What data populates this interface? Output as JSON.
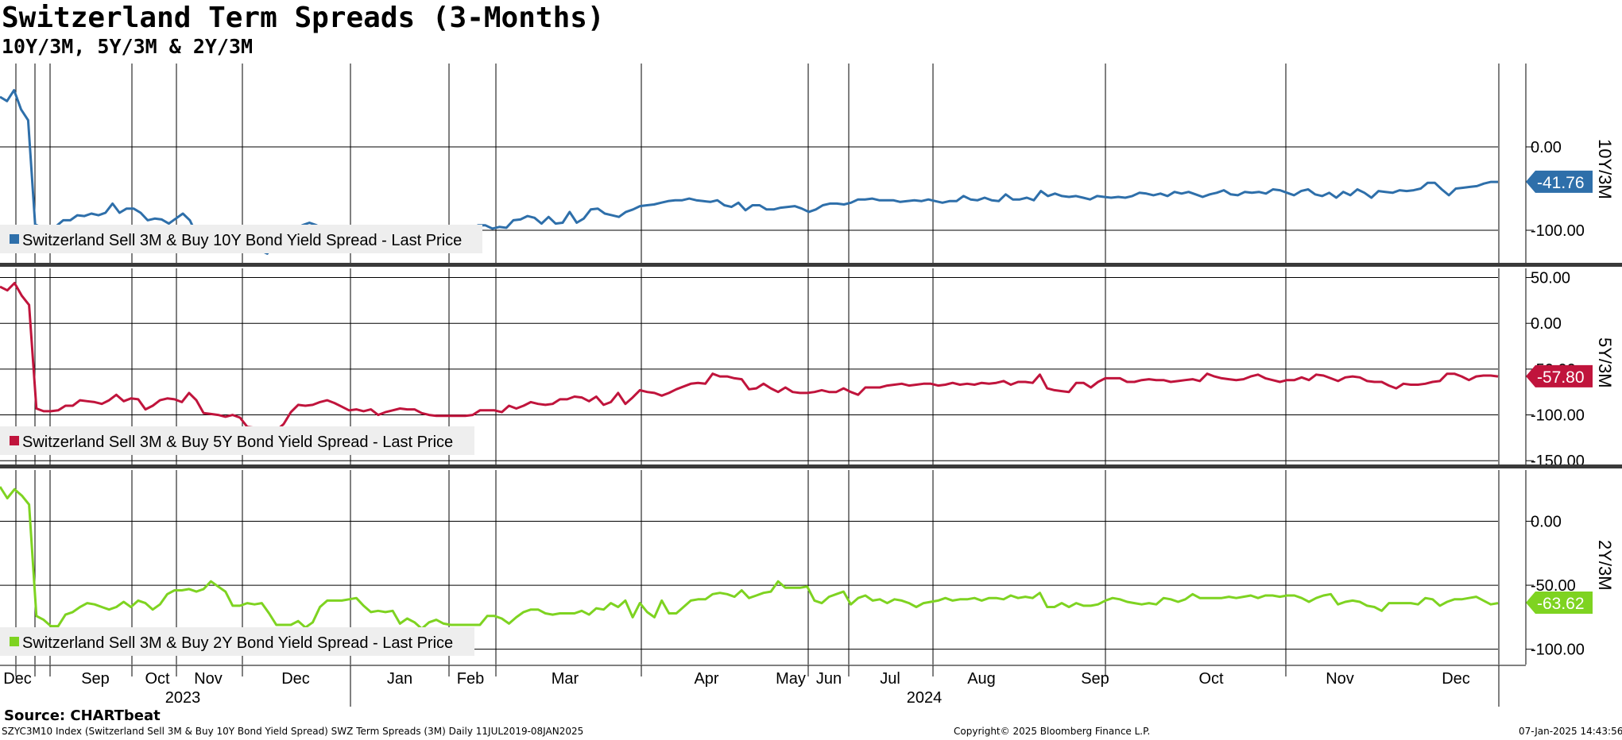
{
  "title": "Switzerland Term Spreads (3-Months)",
  "subtitle": "10Y/3M, 5Y/3M & 2Y/3M",
  "source": "Source: CHARTbeat",
  "footer": {
    "left": "SZYC3M10 Index (Switzerland Sell 3M & Buy 10Y Bond Yield Spread) SWZ Term Spreads (3M)  Daily 11JUL2019-08JAN2025",
    "center": "Copyright© 2025 Bloomberg Finance L.P.",
    "right": "07-Jan-2025 14:43:56"
  },
  "colors": {
    "series_10y": "#2e6faa",
    "series_5y": "#c0143c",
    "series_2y": "#7ed321",
    "grid": "#000000",
    "legend_bg": "#eeeeee"
  },
  "chart_data": {
    "type": "line",
    "x_range": [
      "2023-12-01",
      "2025-01-08"
    ],
    "grid": true,
    "month_labels": [
      "Dec",
      "Sep",
      "Oct",
      "Nov",
      "Dec",
      "Jan",
      "Feb",
      "Mar",
      "Apr",
      "May",
      "Jun",
      "Jul",
      "Aug",
      "Sep",
      "Oct",
      "Nov",
      "Dec"
    ],
    "year_labels": [
      "2023",
      "2024"
    ],
    "panels": [
      {
        "name": "10Y/3M",
        "legend": "Switzerland Sell 3M & Buy 10Y Bond Yield Spread - Last Price",
        "last_value": "-41.76",
        "y_ticks": [
          "0.00",
          "-100.00"
        ],
        "values": [
          60,
          55,
          68,
          45,
          32,
          -93,
          -97,
          -96,
          -95,
          -88,
          -88,
          -82,
          -83,
          -80,
          -82,
          -79,
          -68,
          -79,
          -74,
          -74,
          -79,
          -88,
          -86,
          -87,
          -92,
          -86,
          -80,
          -88,
          -106,
          -103,
          -106,
          -108,
          -107,
          -104,
          -123,
          -123,
          -123,
          -124,
          -128,
          -116,
          -100,
          -98,
          -98,
          -94,
          -91,
          -94,
          -98,
          -96,
          -99,
          -95,
          -101,
          -97,
          -96,
          -95,
          -96,
          -97,
          -106,
          -107,
          -107,
          -108,
          -107,
          -106,
          -102,
          -104,
          -101,
          -106,
          -97,
          -99,
          -94,
          -94,
          -98,
          -96,
          -97,
          -88,
          -87,
          -83,
          -85,
          -92,
          -84,
          -92,
          -91,
          -78,
          -91,
          -86,
          -75,
          -74,
          -80,
          -82,
          -84,
          -78,
          -75,
          -71,
          -70,
          -69,
          -67,
          -65,
          -64,
          -64,
          -62,
          -64,
          -65,
          -66,
          -64,
          -70,
          -72,
          -67,
          -76,
          -70,
          -70,
          -75,
          -75,
          -73,
          -72,
          -71,
          -74,
          -78,
          -75,
          -70,
          -68,
          -68,
          -69,
          -67,
          -63,
          -63,
          -62,
          -64,
          -64,
          -64,
          -66,
          -65,
          -64,
          -65,
          -63,
          -65,
          -67,
          -65,
          -65,
          -59,
          -63,
          -64,
          -61,
          -64,
          -65,
          -57,
          -63,
          -63,
          -61,
          -64,
          -53,
          -59,
          -56,
          -59,
          -60,
          -59,
          -61,
          -63,
          -59,
          -60,
          -61,
          -60,
          -61,
          -59,
          -55,
          -56,
          -58,
          -56,
          -59,
          -54,
          -56,
          -54,
          -57,
          -60,
          -57,
          -55,
          -52,
          -57,
          -58,
          -54,
          -55,
          -54,
          -56,
          -51,
          -52,
          -55,
          -58,
          -53,
          -51,
          -57,
          -59,
          -55,
          -61,
          -54,
          -58,
          -51,
          -55,
          -61,
          -53,
          -54,
          -55,
          -52,
          -53,
          -52,
          -50,
          -43,
          -43,
          -51,
          -58,
          -50,
          -49,
          -48,
          -47,
          -44,
          -42,
          -42
        ]
      },
      {
        "name": "5Y/3M",
        "legend": "Switzerland Sell 3M & Buy 5Y Bond Yield Spread - Last Price",
        "last_value": "-57.80",
        "y_ticks": [
          "50.00",
          "0.00",
          "-50.00",
          "-100.00",
          "-150.00"
        ],
        "values": [
          40,
          36,
          44,
          30,
          20,
          -93,
          -96,
          -96,
          -95,
          -90,
          -90,
          -84,
          -85,
          -86,
          -88,
          -84,
          -78,
          -85,
          -82,
          -83,
          -94,
          -90,
          -84,
          -82,
          -83,
          -86,
          -76,
          -84,
          -98,
          -99,
          -100,
          -102,
          -100,
          -103,
          -113,
          -114,
          -115,
          -115,
          -117,
          -110,
          -97,
          -89,
          -90,
          -89,
          -86,
          -84,
          -87,
          -91,
          -95,
          -94,
          -96,
          -94,
          -100,
          -97,
          -95,
          -93,
          -94,
          -94,
          -98,
          -100,
          -101,
          -101,
          -101,
          -101,
          -101,
          -100,
          -95,
          -95,
          -95,
          -97,
          -90,
          -93,
          -90,
          -86,
          -88,
          -89,
          -88,
          -83,
          -83,
          -80,
          -81,
          -85,
          -80,
          -89,
          -86,
          -76,
          -88,
          -81,
          -73,
          -75,
          -76,
          -79,
          -76,
          -72,
          -69,
          -66,
          -65,
          -66,
          -55,
          -58,
          -58,
          -60,
          -61,
          -72,
          -71,
          -66,
          -71,
          -75,
          -70,
          -75,
          -76,
          -76,
          -75,
          -73,
          -75,
          -75,
          -71,
          -75,
          -78,
          -70,
          -70,
          -70,
          -68,
          -67,
          -66,
          -68,
          -67,
          -66,
          -66,
          -68,
          -67,
          -65,
          -67,
          -66,
          -67,
          -65,
          -66,
          -65,
          -63,
          -67,
          -64,
          -64,
          -65,
          -56,
          -71,
          -73,
          -74,
          -75,
          -65,
          -65,
          -70,
          -64,
          -60,
          -60,
          -60,
          -64,
          -64,
          -62,
          -61,
          -62,
          -62,
          -64,
          -63,
          -62,
          -61,
          -63,
          -55,
          -58,
          -60,
          -61,
          -62,
          -61,
          -58,
          -56,
          -60,
          -62,
          -64,
          -62,
          -62,
          -59,
          -62,
          -56,
          -57,
          -60,
          -63,
          -59,
          -58,
          -59,
          -63,
          -64,
          -64,
          -68,
          -71,
          -66,
          -67,
          -67,
          -66,
          -64,
          -63,
          -55,
          -55,
          -58,
          -62,
          -58,
          -57,
          -57,
          -58
        ]
      },
      {
        "name": "2Y/3M",
        "legend": "Switzerland Sell 3M & Buy 2Y Bond Yield Spread - Last Price",
        "last_value": "-63.62",
        "y_ticks": [
          "0.00",
          "-50.00",
          "-100.00"
        ],
        "values": [
          27,
          18,
          25,
          20,
          13,
          -74,
          -77,
          -82,
          -82,
          -73,
          -71,
          -67,
          -64,
          -65,
          -67,
          -69,
          -67,
          -63,
          -67,
          -62,
          -64,
          -69,
          -65,
          -57,
          -54,
          -54,
          -53,
          -55,
          -53,
          -47,
          -51,
          -55,
          -66,
          -66,
          -64,
          -65,
          -64,
          -72,
          -81,
          -81,
          -81,
          -78,
          -83,
          -79,
          -67,
          -62,
          -62,
          -62,
          -61,
          -60,
          -66,
          -71,
          -70,
          -71,
          -70,
          -80,
          -76,
          -79,
          -84,
          -79,
          -77,
          -80,
          -81,
          -81,
          -81,
          -81,
          -81,
          -74,
          -74,
          -76,
          -80,
          -75,
          -71,
          -69,
          -69,
          -72,
          -73,
          -72,
          -72,
          -72,
          -70,
          -73,
          -68,
          -69,
          -64,
          -67,
          -62,
          -75,
          -64,
          -71,
          -75,
          -62,
          -72,
          -72,
          -67,
          -62,
          -61,
          -61,
          -57,
          -56,
          -57,
          -59,
          -54,
          -60,
          -58,
          -56,
          -55,
          -47,
          -52,
          -52,
          -52,
          -51,
          -62,
          -64,
          -59,
          -57,
          -55,
          -65,
          -60,
          -58,
          -62,
          -61,
          -64,
          -61,
          -62,
          -64,
          -67,
          -64,
          -63,
          -62,
          -60,
          -62,
          -61,
          -61,
          -60,
          -62,
          -60,
          -60,
          -61,
          -58,
          -60,
          -59,
          -60,
          -56,
          -67,
          -67,
          -64,
          -67,
          -64,
          -66,
          -66,
          -65,
          -62,
          -60,
          -61,
          -63,
          -64,
          -65,
          -64,
          -65,
          -60,
          -61,
          -63,
          -61,
          -57,
          -60,
          -60,
          -60,
          -60,
          -59,
          -60,
          -59,
          -58,
          -60,
          -58,
          -58,
          -59,
          -58,
          -58,
          -60,
          -63,
          -60,
          -58,
          -57,
          -65,
          -63,
          -62,
          -63,
          -66,
          -67,
          -70,
          -64,
          -64,
          -64,
          -64,
          -65,
          -60,
          -61,
          -66,
          -63,
          -61,
          -61,
          -60,
          -59,
          -62,
          -65,
          -64
        ]
      }
    ]
  }
}
